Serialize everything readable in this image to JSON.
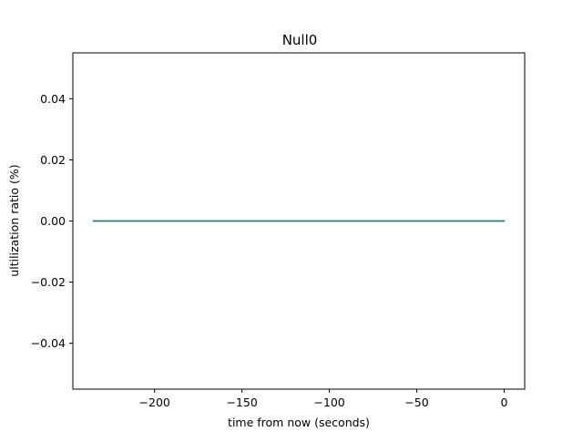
{
  "chart_data": {
    "type": "line",
    "title": "Null0",
    "xlabel": "time from now (seconds)",
    "ylabel": "ultilization ratio (%)",
    "xlim": [
      -246.75,
      11.75
    ],
    "ylim": [
      -0.055,
      0.055
    ],
    "x_ticks": [
      -200,
      -150,
      -100,
      -50,
      0
    ],
    "x_tick_labels": [
      "−200",
      "−150",
      "−100",
      "−50",
      "0"
    ],
    "y_ticks": [
      -0.04,
      -0.02,
      0.0,
      0.02,
      0.04
    ],
    "y_tick_labels": [
      "−0.04",
      "−0.02",
      "0.00",
      "0.02",
      "0.04"
    ],
    "grid": false,
    "series": [
      {
        "color": "#1a6b8a",
        "x": [
          -235,
          0
        ],
        "y": [
          0,
          0
        ]
      },
      {
        "color": "#2e7d6e",
        "x": [
          -235,
          0
        ],
        "y": [
          0,
          0
        ]
      }
    ]
  }
}
